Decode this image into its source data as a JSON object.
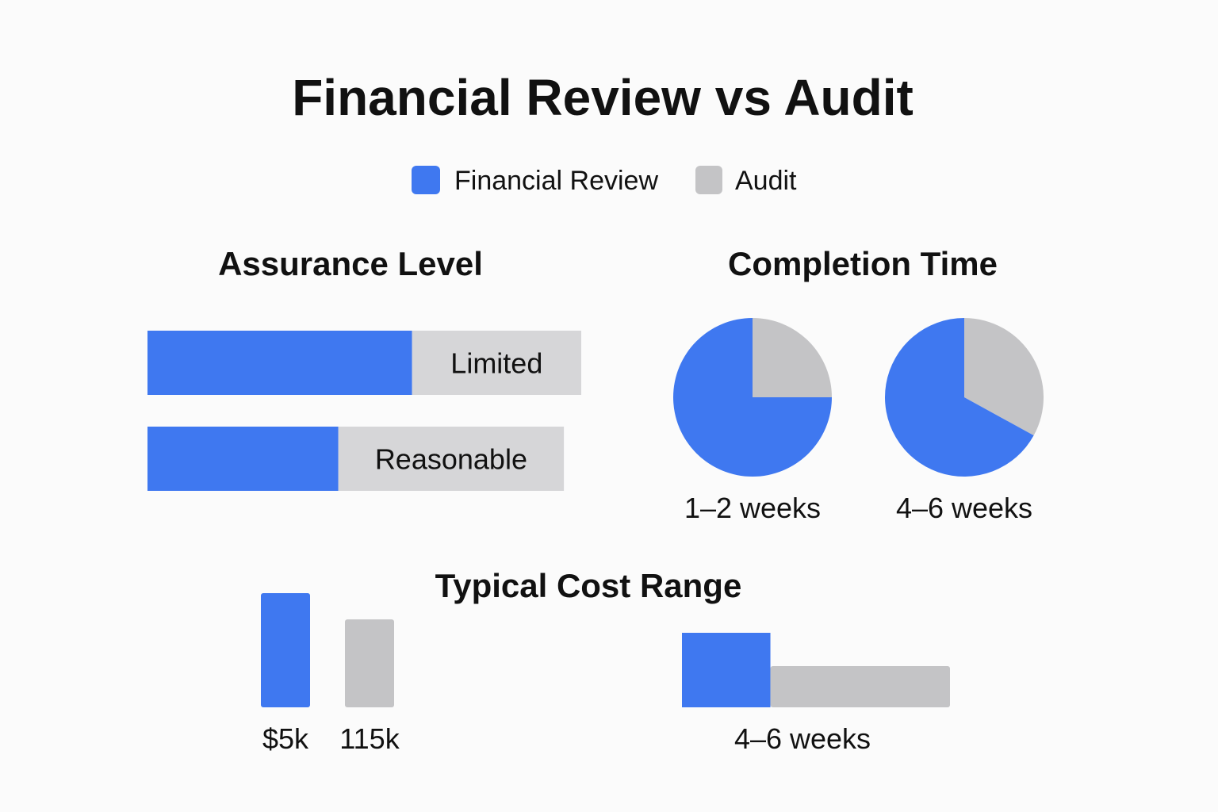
{
  "title": "Financial Review vs Audit",
  "colors": {
    "review": "#3f78f0",
    "audit": "#c4c4c6",
    "audit_light": "#d6d6d8",
    "text": "#111111"
  },
  "legend": [
    {
      "label": "Financial Review",
      "color": "#3f78f0"
    },
    {
      "label": "Audit",
      "color": "#c4c4c6"
    }
  ],
  "chart_data": [
    {
      "type": "bar",
      "orientation": "horizontal",
      "stacked": true,
      "title": "Assurance Level",
      "categories": [
        "Limited",
        "Reasonable"
      ],
      "series": [
        {
          "name": "Financial Review",
          "values": [
            61,
            44
          ]
        },
        {
          "name": "Audit",
          "values": [
            39,
            52
          ]
        }
      ],
      "xlim": [
        0,
        100
      ],
      "grid": false
    },
    {
      "type": "pie",
      "title": "Completion Time",
      "pies": [
        {
          "label": "1–2 weeks",
          "slices": [
            {
              "name": "Financial Review",
              "value": 75
            },
            {
              "name": "Audit",
              "value": 25
            }
          ]
        },
        {
          "label": "4–6 weeks",
          "slices": [
            {
              "name": "Financial Review",
              "value": 67
            },
            {
              "name": "Audit",
              "value": 33
            }
          ]
        }
      ]
    },
    {
      "type": "bar",
      "title": "Typical Cost Range",
      "categories": [
        "$5k",
        "115k"
      ],
      "series": [
        {
          "name": "Financial Review",
          "values": [
            100,
            null
          ]
        },
        {
          "name": "Audit",
          "values": [
            null,
            77
          ]
        }
      ],
      "ylim": [
        0,
        100
      ],
      "grid": false
    },
    {
      "type": "bar",
      "orientation": "horizontal",
      "stacked": true,
      "categories": [
        "4–6 weeks"
      ],
      "series": [
        {
          "name": "Financial Review",
          "values": [
            33
          ]
        },
        {
          "name": "Audit",
          "values": [
            67
          ]
        }
      ],
      "xlim": [
        0,
        100
      ],
      "grid": false
    }
  ]
}
